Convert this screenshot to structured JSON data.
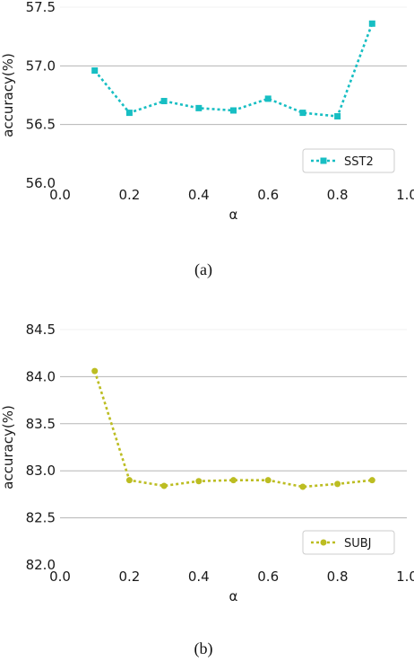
{
  "chart_data": [
    {
      "type": "line",
      "xlabel": "α",
      "ylabel": "accuracy(%)",
      "x": [
        0.1,
        0.2,
        0.3,
        0.4,
        0.5,
        0.6,
        0.7,
        0.8,
        0.9
      ],
      "xlim": [
        0.0,
        1.0
      ],
      "ylim": [
        56.0,
        57.5
      ],
      "xticks": [
        "0.0",
        "0.2",
        "0.4",
        "0.6",
        "0.8",
        "1.0"
      ],
      "yticks": [
        "56.0",
        "56.5",
        "57.0",
        "57.5"
      ],
      "grid": "horizontal",
      "legend_position": "lower-right",
      "caption": "(a)",
      "series": [
        {
          "name": "SST2",
          "color": "#17bec3",
          "marker": "square",
          "values": [
            56.96,
            56.6,
            56.7,
            56.64,
            56.62,
            56.72,
            56.6,
            56.57,
            57.36
          ]
        }
      ]
    },
    {
      "type": "line",
      "xlabel": "α",
      "ylabel": "accuracy(%)",
      "x": [
        0.1,
        0.2,
        0.3,
        0.4,
        0.5,
        0.6,
        0.7,
        0.8,
        0.9
      ],
      "xlim": [
        0.0,
        1.0
      ],
      "ylim": [
        82.0,
        84.5
      ],
      "xticks": [
        "0.0",
        "0.2",
        "0.4",
        "0.6",
        "0.8",
        "1.0"
      ],
      "yticks": [
        "82.0",
        "82.5",
        "83.0",
        "83.5",
        "84.0",
        "84.5"
      ],
      "grid": "horizontal",
      "legend_position": "lower-right",
      "caption": "(b)",
      "series": [
        {
          "name": "SUBJ",
          "color": "#bcbd22",
          "marker": "circle",
          "values": [
            84.06,
            82.9,
            82.84,
            82.89,
            82.9,
            82.9,
            82.83,
            82.86,
            82.9
          ]
        }
      ]
    }
  ]
}
